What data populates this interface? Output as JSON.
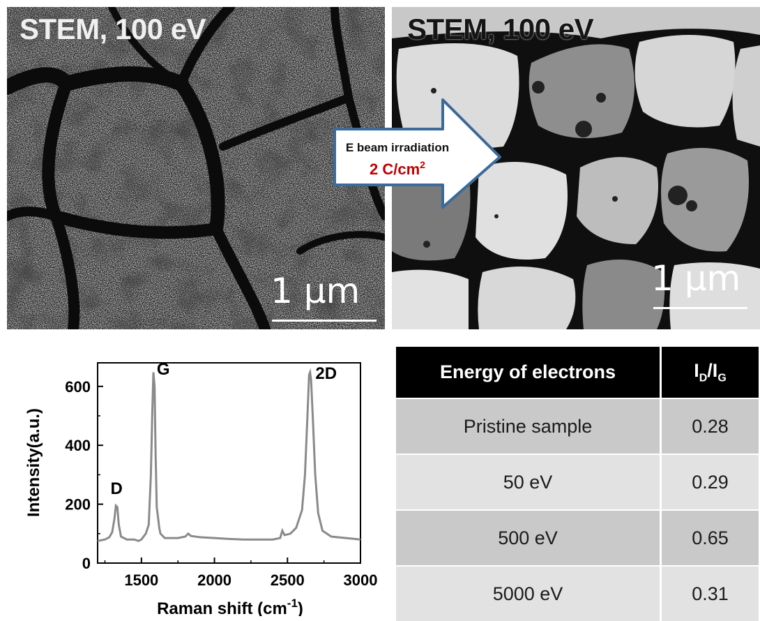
{
  "figure": {
    "panel_left": {
      "title": "STEM, 100 eV",
      "scale_bar": "1 μm"
    },
    "panel_right": {
      "title": "STEM, 100 eV",
      "scale_bar": "1 μm"
    },
    "arrow": {
      "line1": "E beam irradiation",
      "line2_value": "2 C/cm",
      "line2_sup": "2",
      "accent_color": "#c00000"
    }
  },
  "table": {
    "headers": [
      "Energy of electrons",
      "I",
      "D",
      "/I",
      "G"
    ],
    "rows": [
      [
        "Pristine sample",
        "0.28"
      ],
      [
        "50 eV",
        "0.29"
      ],
      [
        "500 eV",
        "0.65"
      ],
      [
        "5000 eV",
        "0.31"
      ]
    ]
  },
  "chart_data": {
    "type": "line",
    "xlabel": "Raman shift (cm",
    "xlabel_sup": "-1",
    "xlabel_end": ")",
    "ylabel": "Intensity(a.u.)",
    "xlim": [
      1200,
      3000
    ],
    "ylim": [
      0,
      680
    ],
    "xticks": [
      1500,
      2000,
      2500,
      3000
    ],
    "yticks": [
      0,
      200,
      400,
      600
    ],
    "series": [
      {
        "points": [
          [
            1200,
            75
          ],
          [
            1250,
            80
          ],
          [
            1280,
            88
          ],
          [
            1300,
            105
          ],
          [
            1315,
            150
          ],
          [
            1325,
            195
          ],
          [
            1335,
            190
          ],
          [
            1345,
            130
          ],
          [
            1360,
            90
          ],
          [
            1400,
            80
          ],
          [
            1450,
            80
          ],
          [
            1480,
            75
          ],
          [
            1500,
            80
          ],
          [
            1530,
            100
          ],
          [
            1550,
            130
          ],
          [
            1565,
            300
          ],
          [
            1575,
            520
          ],
          [
            1582,
            648
          ],
          [
            1590,
            600
          ],
          [
            1597,
            380
          ],
          [
            1605,
            190
          ],
          [
            1615,
            150
          ],
          [
            1622,
            120
          ],
          [
            1630,
            100
          ],
          [
            1660,
            85
          ],
          [
            1750,
            85
          ],
          [
            1800,
            90
          ],
          [
            1820,
            100
          ],
          [
            1840,
            92
          ],
          [
            1900,
            88
          ],
          [
            2000,
            85
          ],
          [
            2100,
            82
          ],
          [
            2200,
            80
          ],
          [
            2300,
            80
          ],
          [
            2400,
            80
          ],
          [
            2450,
            85
          ],
          [
            2465,
            110
          ],
          [
            2480,
            95
          ],
          [
            2520,
            100
          ],
          [
            2560,
            120
          ],
          [
            2600,
            180
          ],
          [
            2620,
            300
          ],
          [
            2635,
            480
          ],
          [
            2648,
            640
          ],
          [
            2655,
            648
          ],
          [
            2662,
            620
          ],
          [
            2675,
            480
          ],
          [
            2690,
            300
          ],
          [
            2710,
            170
          ],
          [
            2740,
            110
          ],
          [
            2800,
            90
          ],
          [
            2900,
            85
          ],
          [
            3000,
            80
          ]
        ]
      }
    ],
    "peak_labels": [
      {
        "text": "D",
        "x": 1330,
        "y": 235
      },
      {
        "text": "G",
        "x": 1650,
        "y": 640
      },
      {
        "text": "2D",
        "x": 2765,
        "y": 625
      }
    ],
    "color": "#8a8a8a"
  }
}
